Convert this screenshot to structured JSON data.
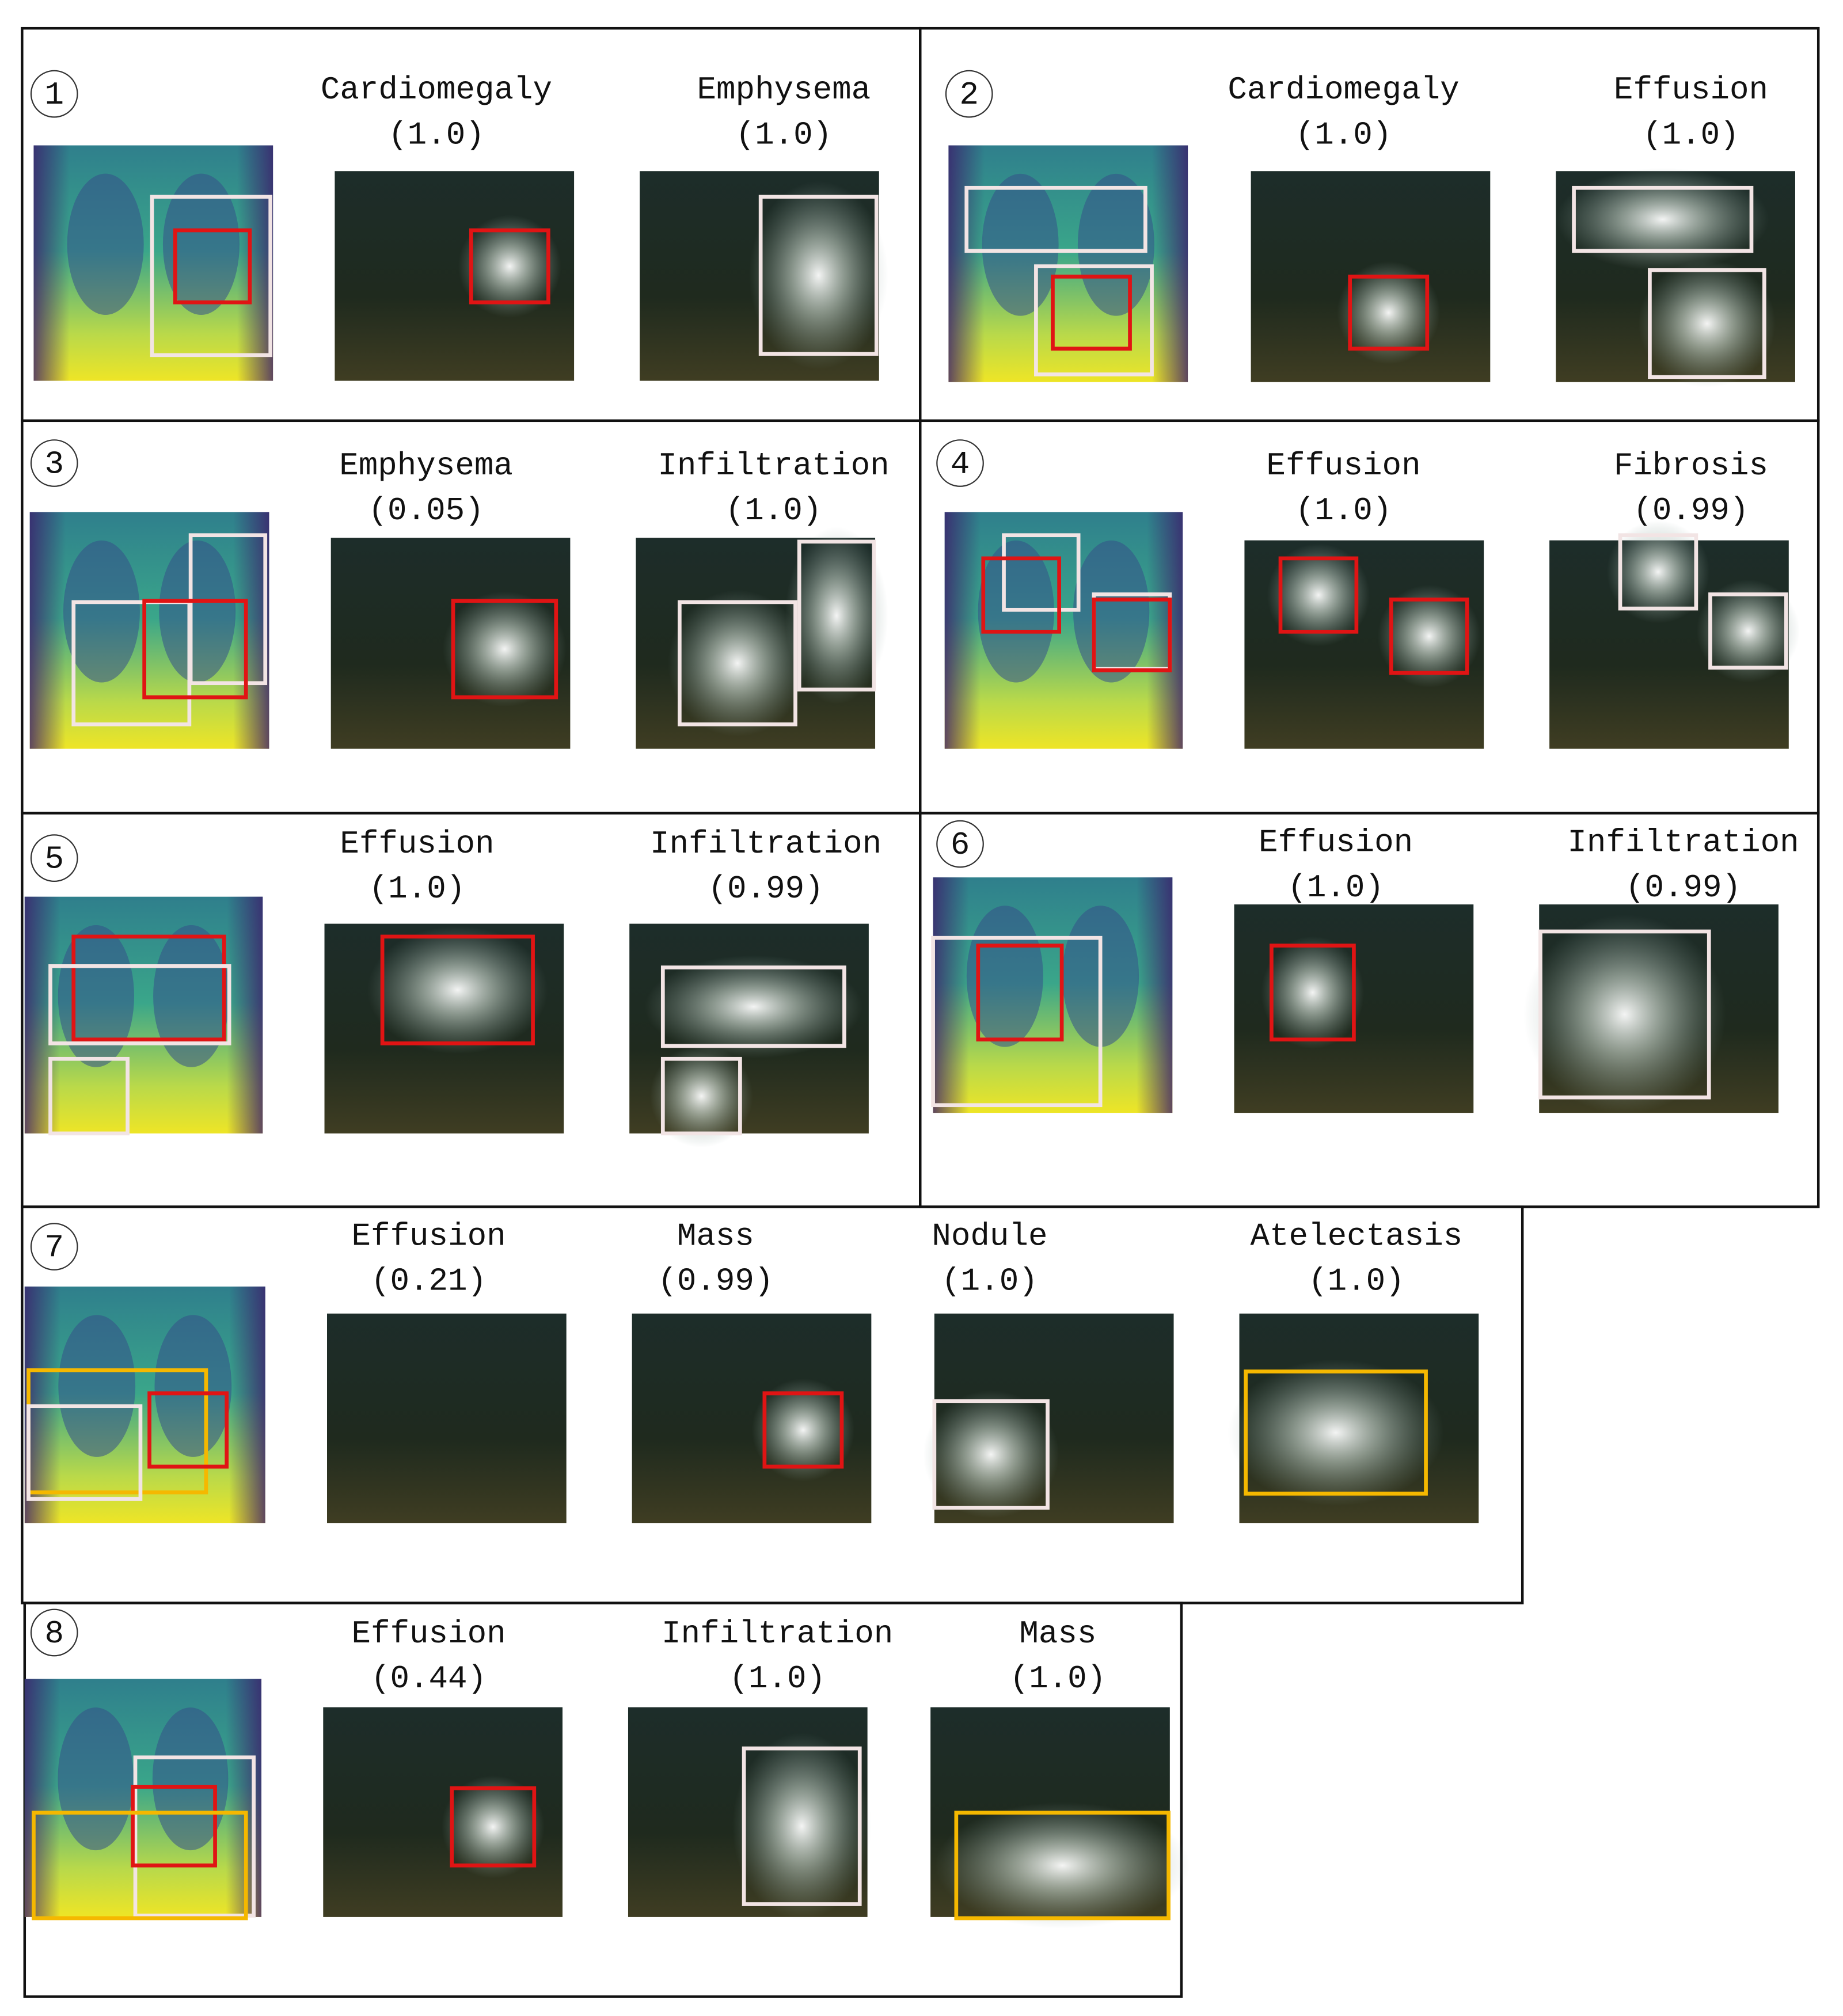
{
  "panels": [
    {
      "number": "1",
      "images": [
        {
          "label": "Cardiomegaly",
          "score": "(1.0)"
        },
        {
          "label": "Emphysema",
          "score": "(1.0)"
        }
      ]
    },
    {
      "number": "2",
      "images": [
        {
          "label": "Cardiomegaly",
          "score": "(1.0)"
        },
        {
          "label": "Effusion",
          "score": "(1.0)"
        }
      ]
    },
    {
      "number": "3",
      "images": [
        {
          "label": "Emphysema",
          "score": "(0.05)"
        },
        {
          "label": "Infiltration",
          "score": "(1.0)"
        }
      ]
    },
    {
      "number": "4",
      "images": [
        {
          "label": "Effusion",
          "score": "(1.0)"
        },
        {
          "label": "Fibrosis",
          "score": "(0.99)"
        }
      ]
    },
    {
      "number": "5",
      "images": [
        {
          "label": "Effusion",
          "score": "(1.0)"
        },
        {
          "label": "Infiltration",
          "score": "(0.99)"
        }
      ]
    },
    {
      "number": "6",
      "images": [
        {
          "label": "Effusion",
          "score": "(1.0)"
        },
        {
          "label": "Infiltration",
          "score": "(0.99)"
        }
      ]
    },
    {
      "number": "7",
      "images": [
        {
          "label": "Effusion",
          "score": "(0.21)"
        },
        {
          "label": "Mass",
          "score": "(0.99)"
        },
        {
          "label": "Nodule",
          "score": "(1.0)"
        },
        {
          "label": "Atelectasis",
          "score": "(1.0)"
        }
      ]
    },
    {
      "number": "8",
      "images": [
        {
          "label": "Effusion",
          "score": "(0.44)"
        },
        {
          "label": "Infiltration",
          "score": "(1.0)"
        },
        {
          "label": "Mass",
          "score": "(1.0)"
        }
      ]
    }
  ]
}
